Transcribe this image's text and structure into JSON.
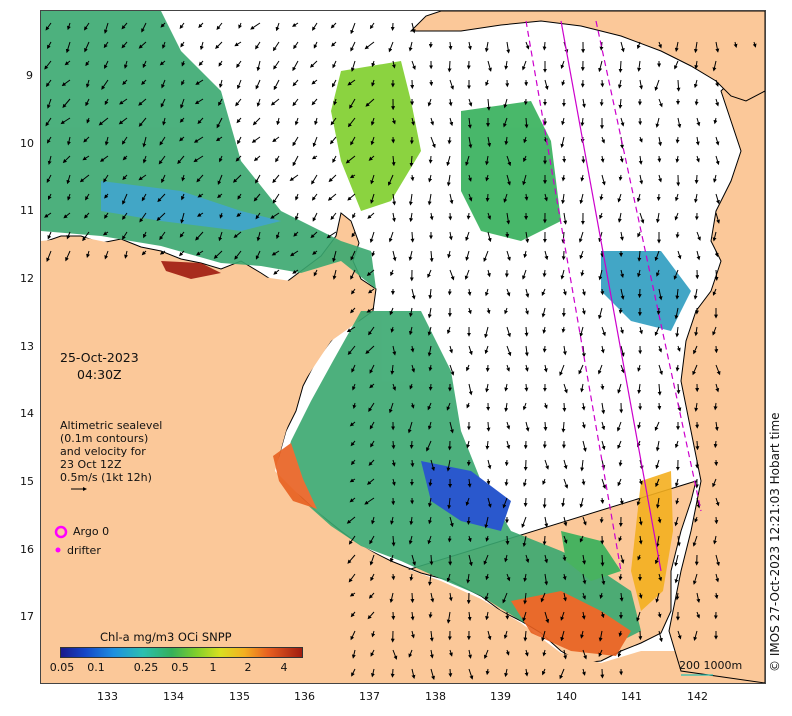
{
  "date_label": "25-Oct-2023",
  "time_label": "04:30Z",
  "sealevel_note": [
    "Altimetric sealevel",
    "(0.1m contours)",
    "and velocity for",
    "23 Oct 12Z",
    "0.5m/s (1kt 12h)"
  ],
  "legend": {
    "argo_label": "Argo 0",
    "drifter_label": "drifter",
    "argo_color": "#ff00ff",
    "drifter_color": "#ff00ff"
  },
  "colorbar": {
    "title": "Chl-a mg/m3 OCi SNPP",
    "ticks": [
      "0.05",
      "0.1",
      "0.25",
      "0.5",
      "1",
      "2",
      "4"
    ]
  },
  "scale_label": "200  1000m",
  "credit": "© IMOS 27-Oct-2023 12:21:03 Hobart time",
  "x_ticks": [
    "133",
    "134",
    "135",
    "136",
    "137",
    "138",
    "139",
    "140",
    "141",
    "142"
  ],
  "y_ticks": [
    "9",
    "10",
    "11",
    "12",
    "13",
    "14",
    "15",
    "16",
    "17"
  ],
  "colors": {
    "land": "#fbc899",
    "ocean_nodata": "#ffffff",
    "track": "#cc00cc"
  }
}
